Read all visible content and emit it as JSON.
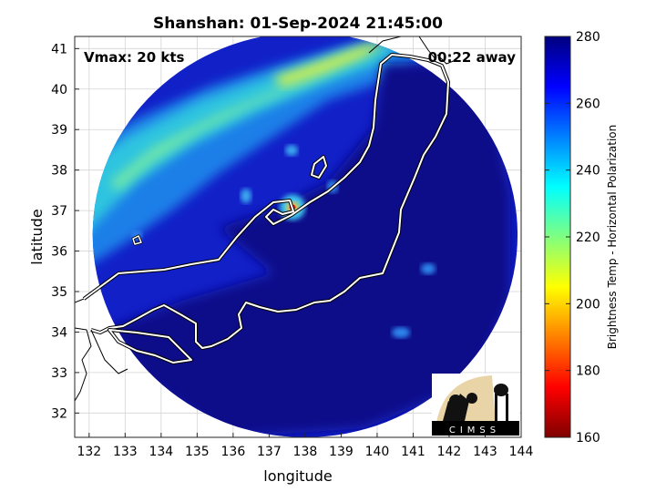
{
  "chart_data": {
    "type": "heatmap",
    "title": "Shanshan: 01-Sep-2024 21:45:00",
    "xlabel": "longitude",
    "ylabel": "latitude",
    "xlim": [
      131.6,
      144
    ],
    "ylim": [
      31.4,
      41.3
    ],
    "x_ticks": [
      "132",
      "133",
      "134",
      "135",
      "136",
      "137",
      "138",
      "139",
      "140",
      "141",
      "142",
      "143",
      "144"
    ],
    "y_ticks": [
      "32",
      "33",
      "34",
      "35",
      "36",
      "37",
      "38",
      "39",
      "40",
      "41"
    ],
    "grid": true,
    "annotations": {
      "vmax": "Vmax: 20 kts",
      "away": "00:22 away"
    },
    "colorbar": {
      "label": "Brightness Temp - Horizontal Polarization",
      "min": 160,
      "max": 280,
      "ticks": [
        "160",
        "180",
        "200",
        "220",
        "240",
        "260",
        "280"
      ],
      "colors": [
        "#7f0000",
        "#ff0000",
        "#ff8000",
        "#ffff00",
        "#80ff80",
        "#00ffff",
        "#0080ff",
        "#0000ff",
        "#00007f"
      ]
    },
    "swath": {
      "center": [
        138.0,
        36.4
      ],
      "radius_deg": [
        5.9,
        5.0
      ]
    },
    "storm_center": [
      137.65,
      37.08
    ],
    "logo_text": "CIMSS"
  }
}
